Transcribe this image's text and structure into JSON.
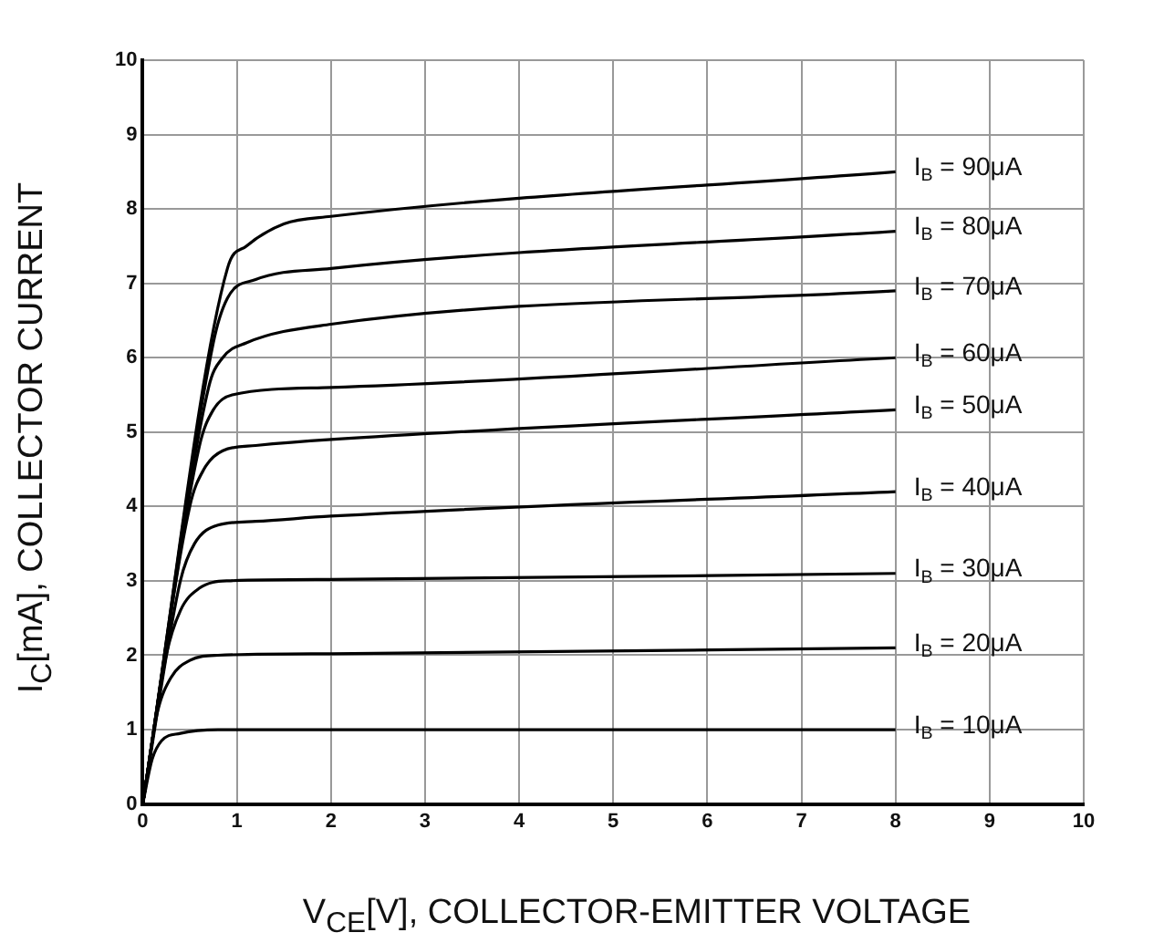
{
  "chart_data": {
    "type": "line",
    "xlabel": "V$_{CE}$[V], COLLECTOR-EMITTER VOLTAGE",
    "ylabel": "I$_{C}$[mA], COLLECTOR CURRENT",
    "xlim": [
      0,
      10
    ],
    "ylim": [
      0,
      10
    ],
    "xticks": [
      0,
      1,
      2,
      3,
      4,
      5,
      6,
      7,
      8,
      9,
      10
    ],
    "yticks": [
      0,
      1,
      2,
      3,
      4,
      5,
      6,
      7,
      8,
      9,
      10
    ],
    "grid": true,
    "legend": false,
    "marker": "none",
    "line_style": "solid",
    "series": [
      {
        "name": "I$_{B}$ = 10μA",
        "color": "#000000",
        "x": [
          0,
          0.1,
          0.2,
          0.4,
          0.8,
          2,
          8
        ],
        "values": [
          0,
          0.6,
          0.85,
          0.95,
          1.0,
          1.0,
          1.0
        ]
      },
      {
        "name": "I$_{B}$ = 20μA",
        "color": "#000000",
        "x": [
          0,
          0.15,
          0.3,
          0.5,
          0.8,
          2,
          8
        ],
        "values": [
          0,
          1.2,
          1.7,
          1.93,
          2.0,
          2.02,
          2.1
        ]
      },
      {
        "name": "I$_{B}$ = 30μA",
        "color": "#000000",
        "x": [
          0,
          0.25,
          0.4,
          0.6,
          0.9,
          2,
          8
        ],
        "values": [
          0,
          2.0,
          2.6,
          2.9,
          3.0,
          3.02,
          3.1
        ]
      },
      {
        "name": "I$_{B}$ = 40μA",
        "color": "#000000",
        "x": [
          0,
          0.4,
          0.55,
          0.8,
          1.2,
          2,
          8
        ],
        "values": [
          0,
          3.0,
          3.5,
          3.75,
          3.8,
          3.87,
          4.2
        ]
      },
      {
        "name": "I$_{B}$ = 50μA",
        "color": "#000000",
        "x": [
          0,
          0.5,
          0.65,
          0.85,
          1.2,
          2,
          8
        ],
        "values": [
          0,
          4.0,
          4.5,
          4.75,
          4.82,
          4.9,
          5.3
        ]
      },
      {
        "name": "I$_{B}$ = 60μA",
        "color": "#000000",
        "x": [
          0,
          0.6,
          0.75,
          0.95,
          2,
          8
        ],
        "values": [
          0,
          4.8,
          5.3,
          5.5,
          5.6,
          6.0
        ]
      },
      {
        "name": "I$_{B}$ = 70μA",
        "color": "#000000",
        "x": [
          0,
          0.7,
          0.85,
          1.1,
          2,
          8
        ],
        "values": [
          0,
          5.6,
          6.0,
          6.2,
          6.45,
          6.9
        ]
      },
      {
        "name": "I$_{B}$ = 80μA",
        "color": "#000000",
        "x": [
          0,
          0.75,
          0.9,
          1.2,
          2,
          8
        ],
        "values": [
          0,
          6.2,
          6.8,
          7.05,
          7.2,
          7.7
        ]
      },
      {
        "name": "I$_{B}$ = 90μA",
        "color": "#000000",
        "x": [
          0,
          0.9,
          1.1,
          1.5,
          2,
          8
        ],
        "values": [
          0,
          7.2,
          7.5,
          7.8,
          7.9,
          8.5
        ]
      }
    ]
  }
}
